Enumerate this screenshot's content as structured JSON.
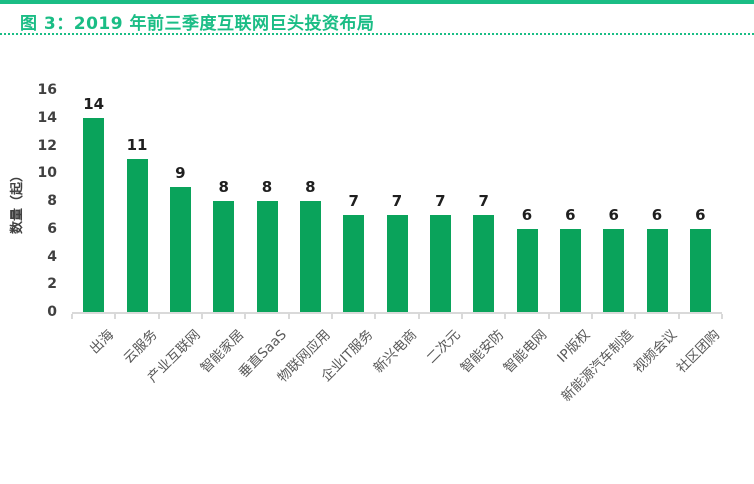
{
  "header": {
    "title": "图 3：2019 年前三季度互联网巨头投资布局"
  },
  "colors": {
    "accent_green": "#1abd85",
    "bar_green": "#0aa35b",
    "axis_gray": "#d9d9d9",
    "tick_text": "#404040",
    "category_text": "#595959",
    "value_label_text": "#1f1f1f"
  },
  "chart_data": {
    "type": "bar",
    "title": "2019 年前三季度互联网巨头投资布局",
    "categories": [
      "出海",
      "云服务",
      "产业互联网",
      "智能家居",
      "垂直SaaS",
      "物联网应用",
      "企业IT服务",
      "新兴电商",
      "二次元",
      "智能安防",
      "智能电网",
      "IP版权",
      "新能源汽车制造",
      "视频会议",
      "社区团购"
    ],
    "values": [
      14,
      11,
      9,
      8,
      8,
      8,
      7,
      7,
      7,
      7,
      6,
      6,
      6,
      6,
      6
    ],
    "xlabel": "",
    "ylabel": "数量（起）",
    "ylim": [
      0,
      16
    ],
    "yticks": [
      0,
      2,
      4,
      6,
      8,
      10,
      12,
      14,
      16
    ],
    "grid": false,
    "legend_position": "none",
    "data_labels": true,
    "x_label_rotation_deg": 45
  }
}
